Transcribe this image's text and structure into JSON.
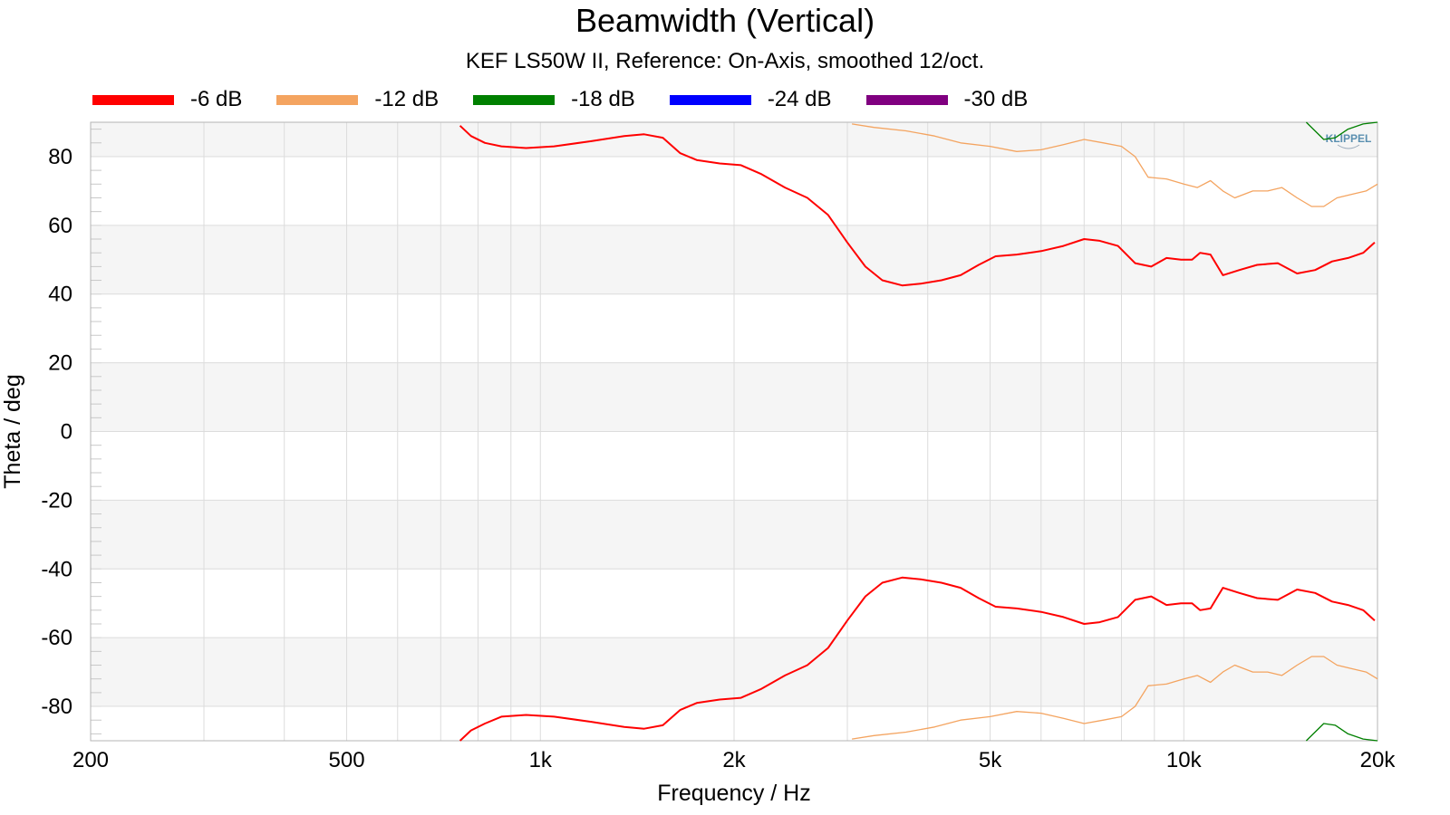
{
  "title": "Beamwidth (Vertical)",
  "subtitle": "KEF LS50W II, Reference: On-Axis, smoothed 12/oct.",
  "watermark": "KLIPPEL",
  "chart_data": {
    "type": "line",
    "title": "Beamwidth (Vertical)",
    "subtitle": "KEF LS50W II, Reference: On-Axis, smoothed 12/oct.",
    "xlabel": "Frequency / Hz",
    "ylabel": "Theta / deg",
    "xscale": "log",
    "xlim": [
      200,
      20000
    ],
    "ylim": [
      -90,
      90
    ],
    "xticks": [
      200,
      500,
      1000,
      2000,
      5000,
      10000,
      20000
    ],
    "xtick_labels": [
      "200",
      "500",
      "1k",
      "2k",
      "5k",
      "10k",
      "20k"
    ],
    "yticks": [
      80,
      60,
      40,
      20,
      0,
      -20,
      -40,
      -60,
      -80
    ],
    "ytick_labels": [
      "80",
      "60",
      "40",
      "20",
      "0",
      "-20",
      "-40",
      "-60",
      "-80"
    ],
    "grid": true,
    "legend_position": "top",
    "series": [
      {
        "name": "-6 dB",
        "color": "#ff0000",
        "x": [
          750,
          780,
          820,
          870,
          950,
          1050,
          1200,
          1350,
          1450,
          1550,
          1650,
          1750,
          1900,
          2050,
          2200,
          2400,
          2600,
          2800,
          3000,
          3200,
          3400,
          3650,
          3900,
          4200,
          4500,
          4800,
          5100,
          5500,
          6000,
          6500,
          7000,
          7400,
          7900,
          8400,
          8900,
          9400,
          9900,
          10300,
          10600,
          11000,
          11500,
          12200,
          13000,
          14000,
          15000,
          16000,
          17000,
          18000,
          19000,
          19800
        ],
        "upper": [
          89,
          86,
          84,
          83,
          82.5,
          83,
          84.5,
          86,
          86.5,
          85.5,
          81,
          79,
          78,
          77.5,
          75,
          71,
          68,
          63,
          55,
          48,
          44,
          42.5,
          43,
          44,
          45.5,
          48.5,
          51,
          51.5,
          52.5,
          54,
          56,
          55.5,
          54,
          49,
          48,
          50.5,
          50,
          50,
          52,
          51.5,
          45.5,
          47,
          48.5,
          49,
          46,
          47,
          49.5,
          50.5,
          52,
          55
        ],
        "lower": [
          -90,
          -87,
          -85,
          -83,
          -82.5,
          -83,
          -84.5,
          -86,
          -86.5,
          -85.5,
          -81,
          -79,
          -78,
          -77.5,
          -75,
          -71,
          -68,
          -63,
          -55,
          -48,
          -44,
          -42.5,
          -43,
          -44,
          -45.5,
          -48.5,
          -51,
          -51.5,
          -52.5,
          -54,
          -56,
          -55.5,
          -54,
          -49,
          -48,
          -50.5,
          -50,
          -50,
          -52,
          -51.5,
          -45.5,
          -47,
          -48.5,
          -49,
          -46,
          -47,
          -49.5,
          -50.5,
          -52,
          -55
        ]
      },
      {
        "name": "-12 dB",
        "color": "#f4a460",
        "x": [
          3050,
          3300,
          3700,
          4100,
          4500,
          5000,
          5500,
          6000,
          6500,
          7000,
          7500,
          8000,
          8400,
          8800,
          9400,
          10000,
          10500,
          11000,
          11500,
          12000,
          12800,
          13500,
          14200,
          15000,
          15800,
          16500,
          17300,
          18200,
          19200,
          20000
        ],
        "upper": [
          89.5,
          88.5,
          87.5,
          86,
          84,
          83,
          81.5,
          82,
          83.5,
          85,
          84,
          83,
          80,
          74,
          73.5,
          72,
          71,
          73,
          70,
          68,
          70,
          70,
          71,
          68,
          65.5,
          65.5,
          68,
          69,
          70,
          72
        ],
        "lower": [
          -89.5,
          -88.5,
          -87.5,
          -86,
          -84,
          -83,
          -81.5,
          -82,
          -83.5,
          -85,
          -84,
          -83,
          -80,
          -74,
          -73.5,
          -72,
          -71,
          -73,
          -70,
          -68,
          -70,
          -70,
          -71,
          -68,
          -65.5,
          -65.5,
          -68,
          -69,
          -70,
          -72
        ]
      },
      {
        "name": "-18 dB",
        "color": "#008000",
        "x": [
          15500,
          16500,
          17200,
          18000,
          19000,
          20000
        ],
        "upper": [
          90,
          85,
          85.5,
          88,
          89.5,
          90
        ],
        "lower": [
          -90,
          -85,
          -85.5,
          -88,
          -89.5,
          -90
        ]
      },
      {
        "name": "-24 dB",
        "color": "#0000ff",
        "x": [],
        "upper": [],
        "lower": []
      },
      {
        "name": "-30 dB",
        "color": "#800080",
        "x": [],
        "upper": [],
        "lower": []
      }
    ]
  }
}
